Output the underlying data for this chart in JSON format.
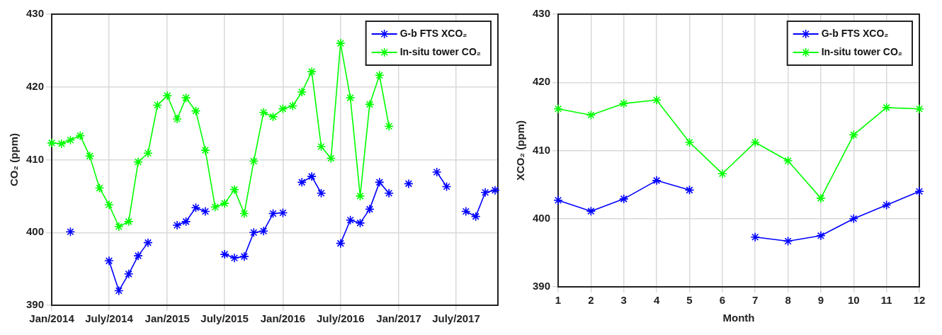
{
  "chart_data": [
    {
      "type": "line",
      "ylabel": "CO₂ (ppm)",
      "x": [
        "2014-01",
        "2014-02",
        "2014-03",
        "2014-04",
        "2014-05",
        "2014-06",
        "2014-07",
        "2014-08",
        "2014-09",
        "2014-10",
        "2014-11",
        "2014-12",
        "2015-01",
        "2015-02",
        "2015-03",
        "2015-04",
        "2015-05",
        "2015-06",
        "2015-07",
        "2015-08",
        "2015-09",
        "2015-10",
        "2015-11",
        "2015-12",
        "2016-01",
        "2016-02",
        "2016-03",
        "2016-04",
        "2016-05",
        "2016-06",
        "2016-07",
        "2016-08",
        "2016-09",
        "2016-10",
        "2016-11",
        "2016-12",
        "2017-01",
        "2017-02",
        "2017-03",
        "2017-04",
        "2017-05",
        "2017-06",
        "2017-07",
        "2017-08",
        "2017-09",
        "2017-10",
        "2017-11"
      ],
      "series": [
        {
          "name": "G-b FTS XCO₂",
          "color": "#0000ff",
          "values": [
            null,
            null,
            400.1,
            null,
            null,
            null,
            396.1,
            392.0,
            394.3,
            396.8,
            398.6,
            null,
            null,
            401.0,
            401.5,
            403.4,
            402.9,
            null,
            397.0,
            396.5,
            396.7,
            400.0,
            400.2,
            402.6,
            402.7,
            null,
            406.9,
            407.7,
            405.4,
            null,
            398.5,
            401.7,
            401.3,
            403.2,
            406.9,
            405.4,
            null,
            406.7,
            null,
            null,
            408.3,
            406.3,
            null,
            402.9,
            402.2,
            405.5,
            405.8
          ]
        },
        {
          "name": "In-situ tower CO₂",
          "color": "#00ff00",
          "values": [
            412.3,
            412.2,
            412.7,
            413.3,
            410.5,
            406.1,
            403.8,
            400.8,
            401.5,
            409.7,
            410.9,
            417.5,
            418.8,
            415.6,
            418.5,
            416.7,
            411.3,
            403.5,
            404.0,
            405.9,
            402.6,
            409.8,
            416.5,
            415.9,
            417.0,
            417.4,
            419.3,
            422.1,
            411.8,
            410.2,
            426.0,
            418.5,
            405.0,
            417.6,
            421.6,
            414.6,
            null,
            null,
            null,
            null,
            null,
            null,
            null,
            null,
            null,
            null,
            null
          ]
        }
      ],
      "xlim": [
        "2014-01",
        "2017-11-10"
      ],
      "ylim": [
        390,
        430
      ],
      "xticks": [
        {
          "value": "2014-01",
          "label": "Jan/2014"
        },
        {
          "value": "2014-07",
          "label": "July/2014"
        },
        {
          "value": "2015-01",
          "label": "Jan/2015"
        },
        {
          "value": "2015-07",
          "label": "July/2015"
        },
        {
          "value": "2016-01",
          "label": "Jan/2016"
        },
        {
          "value": "2016-07",
          "label": "July/2016"
        },
        {
          "value": "2017-01",
          "label": "Jan/2017"
        },
        {
          "value": "2017-07",
          "label": "July/2017"
        }
      ],
      "yticks": [
        390,
        400,
        410,
        420,
        430
      ],
      "grid": true,
      "legend": "top right",
      "marker": "cross",
      "line_style": "solid"
    },
    {
      "type": "line",
      "xlabel": "Month",
      "ylabel": "XCO₂ (ppm)",
      "x": [
        1,
        2,
        3,
        4,
        5,
        6,
        7,
        8,
        9,
        10,
        11,
        12
      ],
      "series": [
        {
          "name": "G-b FTS XCO₂",
          "color": "#0000ff",
          "values": [
            402.7,
            401.1,
            402.9,
            405.6,
            404.2,
            null,
            397.3,
            396.7,
            397.5,
            400.0,
            402.0,
            404.0
          ]
        },
        {
          "name": "In-situ tower CO₂",
          "color": "#00ff00",
          "values": [
            416.1,
            415.2,
            416.9,
            417.4,
            411.2,
            406.6,
            411.2,
            408.5,
            403.0,
            412.3,
            416.3,
            416.1
          ]
        }
      ],
      "xlim": [
        1,
        12
      ],
      "ylim": [
        390,
        430
      ],
      "xticks": [
        1,
        2,
        3,
        4,
        5,
        6,
        7,
        8,
        9,
        10,
        11,
        12
      ],
      "yticks": [
        390,
        400,
        410,
        420,
        430
      ],
      "grid": true,
      "legend": "top right",
      "marker": "cross",
      "line_style": "solid"
    }
  ]
}
